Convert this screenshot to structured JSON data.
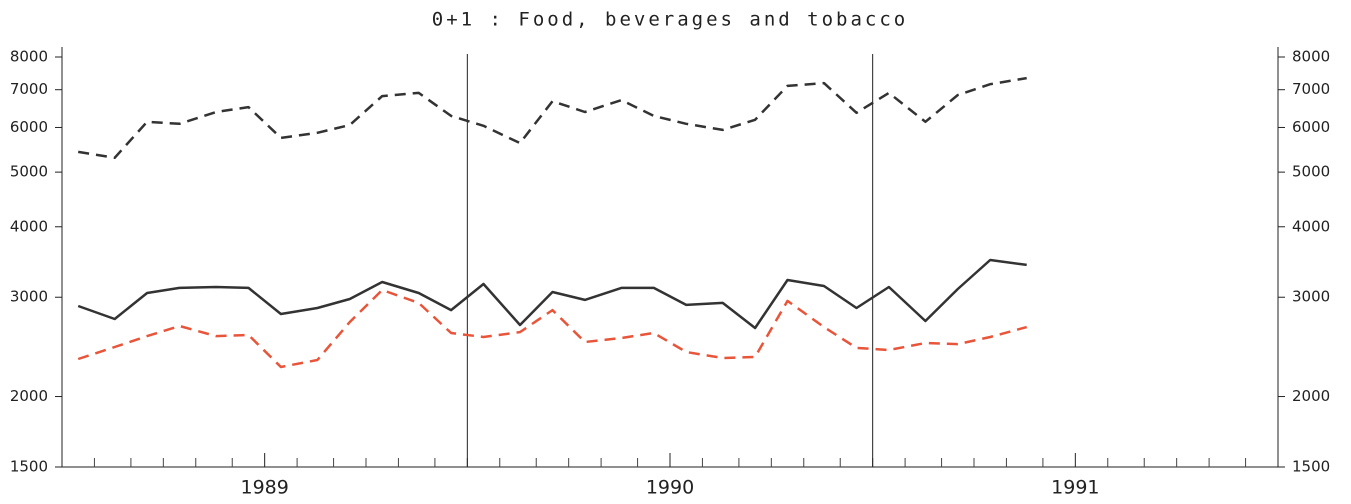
{
  "chart_data": {
    "type": "line",
    "title": "0+1 : Food, beverages and tobacco",
    "x": [
      1988.54,
      1988.63,
      1988.71,
      1988.79,
      1988.88,
      1988.96,
      1989.04,
      1989.13,
      1989.21,
      1989.29,
      1989.38,
      1989.46,
      1989.54,
      1989.63,
      1989.71,
      1989.79,
      1989.88,
      1989.96,
      1990.04,
      1990.13,
      1990.21,
      1990.29,
      1990.38,
      1990.46,
      1990.54,
      1990.63,
      1990.71,
      1990.79,
      1990.88
    ],
    "series": [
      {
        "color": "#333333",
        "dashed": true,
        "values": [
          5430,
          5300,
          6140,
          6090,
          6390,
          6520,
          5750,
          5870,
          6060,
          6820,
          6910,
          6290,
          6040,
          5630,
          6680,
          6390,
          6710,
          6290,
          6090,
          5940,
          6190,
          7110,
          7190,
          6370,
          6910,
          6140,
          6850,
          7160,
          7340
        ]
      },
      {
        "color": "#333333",
        "dashed": false,
        "values": [
          2895,
          2745,
          3052,
          3116,
          3128,
          3116,
          2802,
          2871,
          2979,
          3192,
          3052,
          2847,
          3166,
          2678,
          3065,
          2967,
          3116,
          3116,
          2907,
          2931,
          2646,
          3218,
          3141,
          2871,
          3128,
          2722,
          3102,
          3492,
          3423
        ]
      },
      {
        "color": "#e8553a",
        "dashed": true,
        "values": [
          2331,
          2448,
          2560,
          2667,
          2560,
          2571,
          2256,
          2322,
          2711,
          3090,
          2931,
          2592,
          2550,
          2602,
          2847,
          2499,
          2540,
          2592,
          2399,
          2341,
          2351,
          2955,
          2656,
          2439,
          2419,
          2489,
          2478,
          2550,
          2656
        ]
      }
    ],
    "xlim": [
      1988.5,
      1991.5
    ],
    "xticks": [
      1989,
      1990,
      1991
    ],
    "xminor_ticks": [
      1988.58,
      1988.67,
      1988.75,
      1988.83,
      1988.92,
      1989.08,
      1989.17,
      1989.25,
      1989.33,
      1989.42,
      1989.5,
      1989.58,
      1989.67,
      1989.75,
      1989.83,
      1989.92,
      1990.08,
      1990.17,
      1990.25,
      1990.33,
      1990.42,
      1990.5,
      1990.58,
      1990.67,
      1990.75,
      1990.83,
      1990.92,
      1991.08,
      1991.17,
      1991.25,
      1991.33,
      1991.42
    ],
    "vlines": [
      1989.5,
      1990.5
    ],
    "ylim": [
      1500,
      8000
    ],
    "yticks": [
      1500,
      2000,
      3000,
      4000,
      5000,
      6000,
      7000,
      8000
    ],
    "log_y": true
  }
}
